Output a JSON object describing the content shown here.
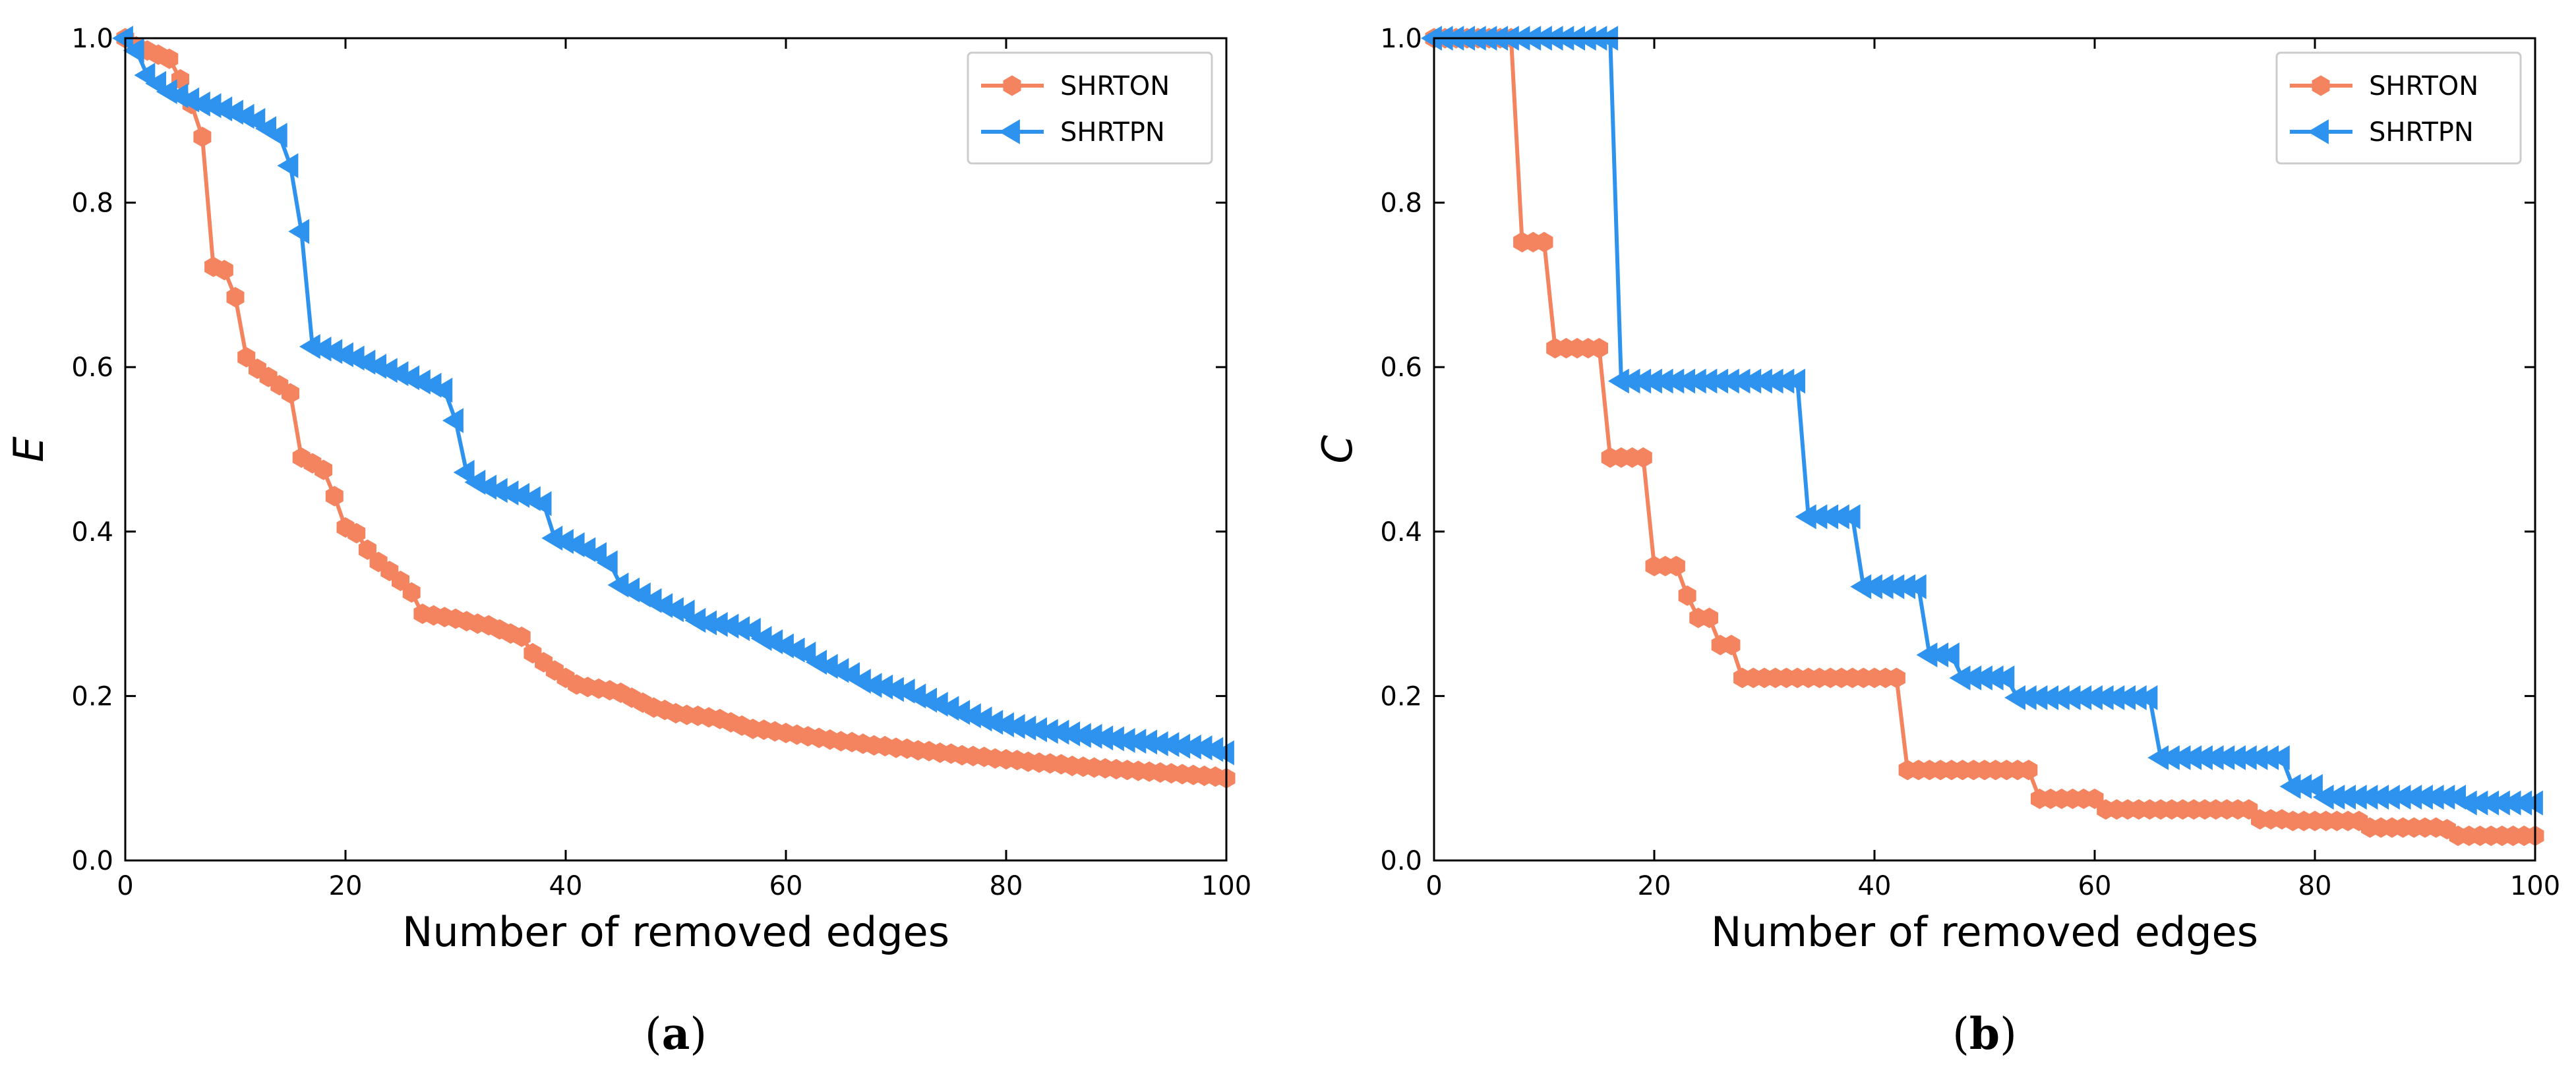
{
  "colors": {
    "SHRTON": "#F4845F",
    "SHRTPN": "#2E93EE",
    "axis": "#000000"
  },
  "chart_data": [
    {
      "id": "a",
      "type": "line",
      "panel_label": "a",
      "title": "",
      "xlabel": "Number of removed edges",
      "ylabel": "E",
      "xlim": [
        0,
        100
      ],
      "ylim": [
        0.0,
        1.0
      ],
      "xticks": [
        "0",
        "20",
        "40",
        "60",
        "80",
        "100"
      ],
      "yticks": [
        "0.0",
        "0.2",
        "0.4",
        "0.6",
        "0.8",
        "1.0"
      ],
      "legend": {
        "position": "top-right",
        "entries": [
          "SHRTON",
          "SHRTPN"
        ]
      },
      "series": [
        {
          "name": "SHRTON",
          "marker": "hexagon",
          "color": "#F4845F",
          "x": [
            0,
            1,
            2,
            3,
            4,
            5,
            6,
            7,
            8,
            9,
            10,
            11,
            12,
            13,
            14,
            15,
            16,
            17,
            18,
            19,
            20,
            21,
            22,
            23,
            24,
            25,
            26,
            27,
            28,
            29,
            30,
            31,
            32,
            33,
            34,
            35,
            36,
            37,
            38,
            39,
            40,
            41,
            42,
            43,
            44,
            45,
            46,
            47,
            48,
            49,
            50,
            51,
            52,
            53,
            54,
            55,
            56,
            57,
            58,
            59,
            60,
            61,
            62,
            63,
            64,
            65,
            66,
            67,
            68,
            69,
            70,
            71,
            72,
            73,
            74,
            75,
            76,
            77,
            78,
            79,
            80,
            81,
            82,
            83,
            84,
            85,
            86,
            87,
            88,
            89,
            90,
            91,
            92,
            93,
            94,
            95,
            96,
            97,
            98,
            99,
            100
          ],
          "y": [
            1.0,
            0.99,
            0.985,
            0.98,
            0.975,
            0.95,
            0.92,
            0.88,
            0.722,
            0.718,
            0.685,
            0.612,
            0.598,
            0.588,
            0.578,
            0.568,
            0.49,
            0.483,
            0.475,
            0.443,
            0.405,
            0.398,
            0.378,
            0.363,
            0.352,
            0.34,
            0.326,
            0.3,
            0.298,
            0.296,
            0.294,
            0.291,
            0.288,
            0.286,
            0.281,
            0.276,
            0.272,
            0.252,
            0.241,
            0.231,
            0.222,
            0.214,
            0.211,
            0.209,
            0.207,
            0.204,
            0.198,
            0.192,
            0.186,
            0.183,
            0.179,
            0.177,
            0.176,
            0.174,
            0.172,
            0.168,
            0.164,
            0.16,
            0.159,
            0.157,
            0.155,
            0.153,
            0.151,
            0.149,
            0.147,
            0.145,
            0.144,
            0.142,
            0.14,
            0.139,
            0.137,
            0.136,
            0.134,
            0.133,
            0.131,
            0.13,
            0.128,
            0.127,
            0.126,
            0.124,
            0.123,
            0.122,
            0.12,
            0.119,
            0.118,
            0.117,
            0.115,
            0.114,
            0.113,
            0.112,
            0.111,
            0.11,
            0.109,
            0.108,
            0.107,
            0.106,
            0.105,
            0.104,
            0.103,
            0.102,
            0.1
          ]
        },
        {
          "name": "SHRTPN",
          "marker": "triangle-left",
          "color": "#2E93EE",
          "x": [
            0,
            1,
            2,
            3,
            4,
            5,
            6,
            7,
            8,
            9,
            10,
            11,
            12,
            13,
            14,
            15,
            16,
            17,
            18,
            19,
            20,
            21,
            22,
            23,
            24,
            25,
            26,
            27,
            28,
            29,
            30,
            31,
            32,
            33,
            34,
            35,
            36,
            37,
            38,
            39,
            40,
            41,
            42,
            43,
            44,
            45,
            46,
            47,
            48,
            49,
            50,
            51,
            52,
            53,
            54,
            55,
            56,
            57,
            58,
            59,
            60,
            61,
            62,
            63,
            64,
            65,
            66,
            67,
            68,
            69,
            70,
            71,
            72,
            73,
            74,
            75,
            76,
            77,
            78,
            79,
            80,
            81,
            82,
            83,
            84,
            85,
            86,
            87,
            88,
            89,
            90,
            91,
            92,
            93,
            94,
            95,
            96,
            97,
            98,
            99,
            100
          ],
          "y": [
            1.0,
            0.985,
            0.955,
            0.945,
            0.935,
            0.93,
            0.925,
            0.92,
            0.918,
            0.914,
            0.91,
            0.905,
            0.9,
            0.89,
            0.882,
            0.845,
            0.765,
            0.625,
            0.622,
            0.619,
            0.615,
            0.611,
            0.606,
            0.601,
            0.596,
            0.592,
            0.587,
            0.582,
            0.578,
            0.572,
            0.535,
            0.472,
            0.46,
            0.454,
            0.45,
            0.447,
            0.444,
            0.44,
            0.434,
            0.392,
            0.388,
            0.384,
            0.378,
            0.372,
            0.362,
            0.335,
            0.329,
            0.323,
            0.316,
            0.31,
            0.305,
            0.302,
            0.292,
            0.289,
            0.287,
            0.285,
            0.282,
            0.28,
            0.27,
            0.266,
            0.261,
            0.256,
            0.251,
            0.241,
            0.236,
            0.231,
            0.226,
            0.218,
            0.213,
            0.211,
            0.208,
            0.206,
            0.2,
            0.195,
            0.19,
            0.185,
            0.18,
            0.176,
            0.172,
            0.168,
            0.165,
            0.163,
            0.161,
            0.159,
            0.157,
            0.156,
            0.154,
            0.152,
            0.151,
            0.149,
            0.148,
            0.146,
            0.145,
            0.144,
            0.142,
            0.141,
            0.139,
            0.138,
            0.137,
            0.135,
            0.131
          ]
        }
      ]
    },
    {
      "id": "b",
      "type": "line",
      "panel_label": "b",
      "title": "",
      "xlabel": "Number of removed edges",
      "ylabel": "C",
      "xlim": [
        0,
        100
      ],
      "ylim": [
        0.0,
        1.0
      ],
      "xticks": [
        "0",
        "20",
        "40",
        "60",
        "80",
        "100"
      ],
      "yticks": [
        "0.0",
        "0.2",
        "0.4",
        "0.6",
        "0.8",
        "1.0"
      ],
      "legend": {
        "position": "top-right",
        "entries": [
          "SHRTON",
          "SHRTPN"
        ]
      },
      "series": [
        {
          "name": "SHRTON",
          "marker": "hexagon",
          "color": "#F4845F",
          "x": [
            0,
            1,
            2,
            3,
            4,
            5,
            6,
            7,
            8,
            9,
            10,
            11,
            12,
            13,
            14,
            15,
            16,
            17,
            18,
            19,
            20,
            21,
            22,
            23,
            24,
            25,
            26,
            27,
            28,
            29,
            30,
            31,
            32,
            33,
            34,
            35,
            36,
            37,
            38,
            39,
            40,
            41,
            42,
            43,
            44,
            45,
            46,
            47,
            48,
            49,
            50,
            51,
            52,
            53,
            54,
            55,
            56,
            57,
            58,
            59,
            60,
            61,
            62,
            63,
            64,
            65,
            66,
            67,
            68,
            69,
            70,
            71,
            72,
            73,
            74,
            75,
            76,
            77,
            78,
            79,
            80,
            81,
            82,
            83,
            84,
            85,
            86,
            87,
            88,
            89,
            90,
            91,
            92,
            93,
            94,
            95,
            96,
            97,
            98,
            99,
            100
          ],
          "y": [
            1.0,
            1.0,
            1.0,
            1.0,
            1.0,
            1.0,
            1.0,
            1.0,
            0.752,
            0.752,
            0.752,
            0.623,
            0.623,
            0.623,
            0.623,
            0.623,
            0.49,
            0.49,
            0.49,
            0.49,
            0.358,
            0.358,
            0.358,
            0.322,
            0.295,
            0.295,
            0.262,
            0.262,
            0.222,
            0.222,
            0.222,
            0.222,
            0.222,
            0.222,
            0.222,
            0.222,
            0.222,
            0.222,
            0.222,
            0.222,
            0.222,
            0.222,
            0.222,
            0.11,
            0.11,
            0.11,
            0.11,
            0.11,
            0.11,
            0.11,
            0.11,
            0.11,
            0.11,
            0.11,
            0.11,
            0.075,
            0.075,
            0.075,
            0.075,
            0.075,
            0.075,
            0.062,
            0.062,
            0.062,
            0.062,
            0.062,
            0.062,
            0.062,
            0.062,
            0.062,
            0.062,
            0.062,
            0.062,
            0.062,
            0.062,
            0.05,
            0.05,
            0.05,
            0.048,
            0.048,
            0.048,
            0.048,
            0.048,
            0.048,
            0.048,
            0.04,
            0.04,
            0.04,
            0.04,
            0.04,
            0.04,
            0.04,
            0.038,
            0.03,
            0.03,
            0.03,
            0.03,
            0.03,
            0.03,
            0.03,
            0.03
          ]
        },
        {
          "name": "SHRTPN",
          "marker": "triangle-left",
          "color": "#2E93EE",
          "x": [
            0,
            1,
            2,
            3,
            4,
            5,
            6,
            7,
            8,
            9,
            10,
            11,
            12,
            13,
            14,
            15,
            16,
            17,
            18,
            19,
            20,
            21,
            22,
            23,
            24,
            25,
            26,
            27,
            28,
            29,
            30,
            31,
            32,
            33,
            34,
            35,
            36,
            37,
            38,
            39,
            40,
            41,
            42,
            43,
            44,
            45,
            46,
            47,
            48,
            49,
            50,
            51,
            52,
            53,
            54,
            55,
            56,
            57,
            58,
            59,
            60,
            61,
            62,
            63,
            64,
            65,
            66,
            67,
            68,
            69,
            70,
            71,
            72,
            73,
            74,
            75,
            76,
            77,
            78,
            79,
            80,
            81,
            82,
            83,
            84,
            85,
            86,
            87,
            88,
            89,
            90,
            91,
            92,
            93,
            94,
            95,
            96,
            97,
            98,
            99,
            100
          ],
          "y": [
            1.0,
            1.0,
            1.0,
            1.0,
            1.0,
            1.0,
            1.0,
            1.0,
            1.0,
            1.0,
            1.0,
            1.0,
            1.0,
            1.0,
            1.0,
            1.0,
            1.0,
            0.583,
            0.583,
            0.583,
            0.583,
            0.583,
            0.583,
            0.583,
            0.583,
            0.583,
            0.583,
            0.583,
            0.583,
            0.583,
            0.583,
            0.583,
            0.583,
            0.583,
            0.418,
            0.418,
            0.418,
            0.418,
            0.418,
            0.333,
            0.333,
            0.333,
            0.333,
            0.333,
            0.333,
            0.25,
            0.25,
            0.25,
            0.222,
            0.222,
            0.222,
            0.222,
            0.222,
            0.198,
            0.198,
            0.198,
            0.198,
            0.198,
            0.198,
            0.198,
            0.198,
            0.198,
            0.198,
            0.198,
            0.198,
            0.198,
            0.125,
            0.125,
            0.125,
            0.125,
            0.125,
            0.125,
            0.125,
            0.125,
            0.125,
            0.125,
            0.125,
            0.125,
            0.09,
            0.09,
            0.09,
            0.077,
            0.077,
            0.077,
            0.077,
            0.077,
            0.077,
            0.077,
            0.077,
            0.077,
            0.077,
            0.077,
            0.077,
            0.077,
            0.07,
            0.07,
            0.07,
            0.07,
            0.07,
            0.07,
            0.07
          ]
        }
      ]
    }
  ]
}
